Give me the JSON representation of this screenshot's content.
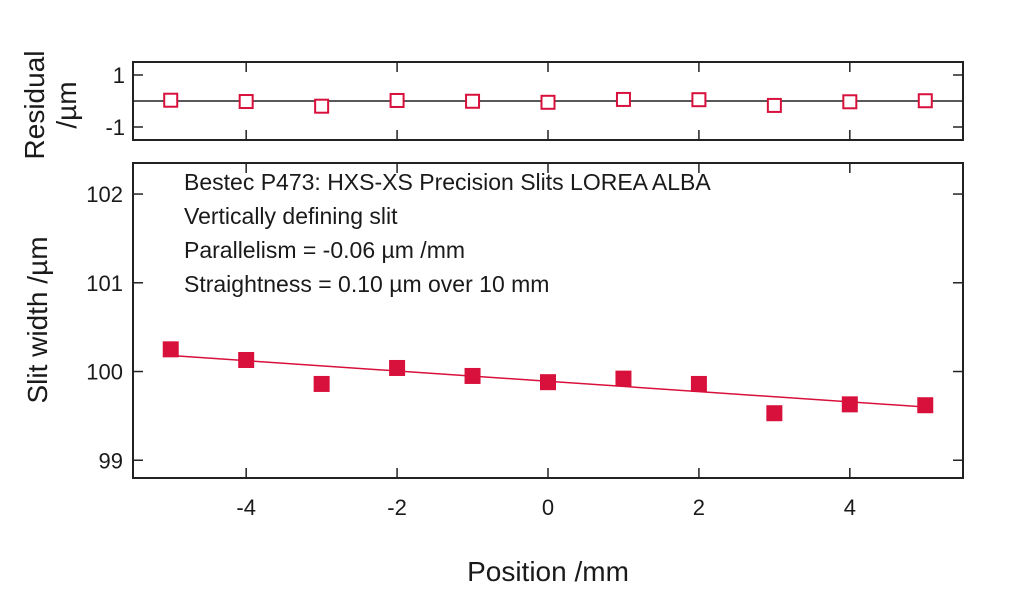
{
  "chart_data": [
    {
      "panel": "residual",
      "type": "scatter",
      "ylabel_line1": "Residual",
      "ylabel_line2": "/µm",
      "ylim": [
        -1.5,
        1.5
      ],
      "ytick_values": [
        1,
        -1
      ],
      "ytick_labels": [
        "1",
        "-1"
      ],
      "zero_line": true,
      "marker": "open-square",
      "color": "#d8103c",
      "x": [
        -5,
        -4,
        -3,
        -2,
        -1,
        0,
        1,
        2,
        3,
        4,
        5
      ],
      "y": [
        0.03,
        -0.02,
        -0.2,
        0.02,
        -0.01,
        -0.05,
        0.06,
        0.05,
        -0.17,
        -0.03,
        0.01
      ]
    },
    {
      "panel": "main",
      "type": "scatter",
      "ylabel": "Slit width /µm",
      "xlabel": "Position /mm",
      "xlim": [
        -5.5,
        5.5
      ],
      "ylim": [
        98.8,
        102.35
      ],
      "xtick_values": [
        -4,
        -2,
        0,
        2,
        4
      ],
      "xtick_labels": [
        "-4",
        "-2",
        "0",
        "2",
        "4"
      ],
      "ytick_values": [
        99,
        100,
        101,
        102
      ],
      "ytick_labels": [
        "99",
        "100",
        "101",
        "102"
      ],
      "marker": "filled-square",
      "color": "#d8103c",
      "x": [
        -5,
        -4,
        -3,
        -2,
        -1,
        0,
        1,
        2,
        3,
        4,
        5
      ],
      "y": [
        100.25,
        100.13,
        99.86,
        100.04,
        99.95,
        99.88,
        99.92,
        99.86,
        99.53,
        99.63,
        99.62
      ],
      "fit": {
        "x": [
          -5,
          5
        ],
        "y": [
          100.18,
          99.6
        ]
      },
      "annotations": [
        "Bestec P473: HXS-XS Precision Slits LOREA ALBA",
        "Vertically defining slit",
        "Parallelism =  -0.06 µm /mm",
        "Straightness = 0.10 µm over 10 mm"
      ]
    }
  ]
}
